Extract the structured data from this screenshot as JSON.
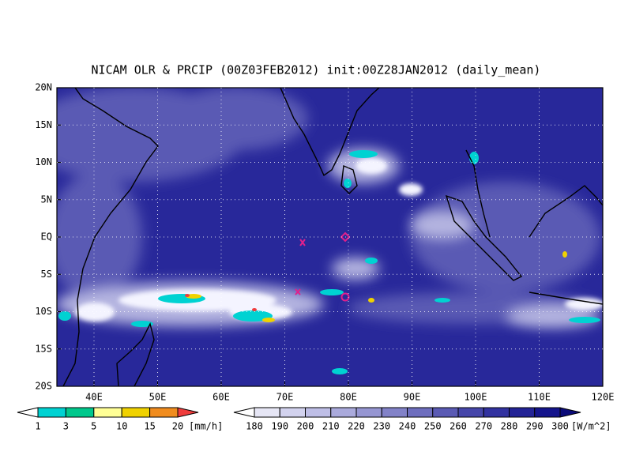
{
  "title": "NICAM OLR & PRCIP (00Z03FEB2012) init:00Z28JAN2012 (daily_mean)",
  "map": {
    "lat_labels": [
      "20N",
      "15N",
      "10N",
      "5N",
      "EQ",
      "5S",
      "10S",
      "15S",
      "20S"
    ],
    "lon_labels": [
      "40E",
      "50E",
      "60E",
      "70E",
      "80E",
      "90E",
      "100E",
      "110E",
      "120E"
    ]
  },
  "precip_colorbar": {
    "labels": [
      1,
      3,
      5,
      10,
      15,
      20
    ],
    "unit": "[mm/h]",
    "colors": [
      "#ffffff",
      "#00d2d2",
      "#00c88c",
      "#ffff96",
      "#f0d200",
      "#f08c1e",
      "#f03c3c"
    ]
  },
  "olr_colorbar": {
    "labels": [
      180,
      190,
      200,
      210,
      220,
      230,
      240,
      250,
      260,
      270,
      280,
      290,
      300
    ],
    "unit": "[W/m^2]",
    "colors": [
      "#ffffff",
      "#e6e6f5",
      "#d2d2ee",
      "#bebee6",
      "#aaaadc",
      "#9696d2",
      "#8282c8",
      "#6e6ebe",
      "#5a5ab4",
      "#4646aa",
      "#3232a0",
      "#232396",
      "#14148c",
      "#0a0a78"
    ]
  }
}
